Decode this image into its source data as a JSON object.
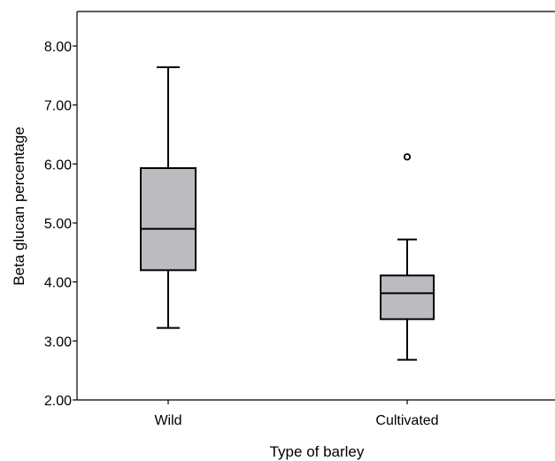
{
  "chart_data": {
    "type": "box",
    "title": "",
    "xlabel": "Type of barley",
    "ylabel": "Beta glucan percentage",
    "ylim": [
      2.0,
      8.0
    ],
    "yticks": [
      "2.00",
      "3.00",
      "4.00",
      "5.00",
      "6.00",
      "7.00",
      "8.00"
    ],
    "categories": [
      "Wild",
      "Cultivated"
    ],
    "boxes": [
      {
        "category": "Wild",
        "whisker_low": 3.22,
        "q1": 4.2,
        "median": 4.9,
        "q3": 5.93,
        "whisker_high": 7.64,
        "outliers": []
      },
      {
        "category": "Cultivated",
        "whisker_low": 2.68,
        "q1": 3.37,
        "median": 3.81,
        "q3": 4.11,
        "whisker_high": 4.72,
        "outliers": [
          6.12
        ]
      }
    ],
    "box_fill": "#bcbcc0",
    "line_color": "#000000",
    "grid": false
  }
}
